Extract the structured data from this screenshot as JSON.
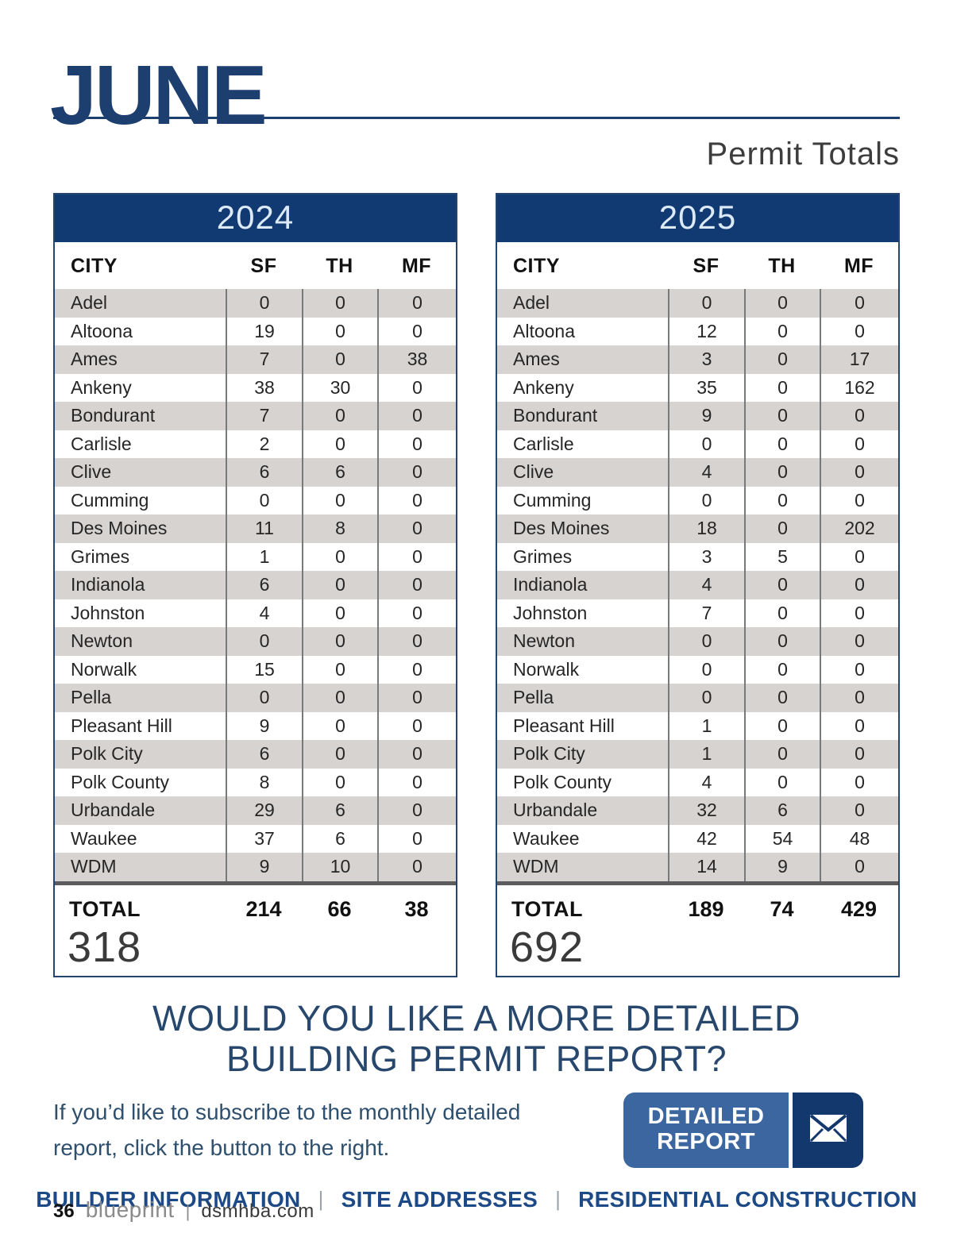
{
  "colors": {
    "navy": "#1d3f70",
    "banner": "#113a72",
    "stripe": "#d6d3d1",
    "heading": "#27476d",
    "btn-left": "#3c66a0",
    "btn-right": "#13386e",
    "links": "#1d4a86"
  },
  "header": {
    "month": "JUNE",
    "subtitle": "Permit Totals"
  },
  "tables": [
    {
      "year": "2024",
      "columns": [
        "CITY",
        "SF",
        "TH",
        "MF"
      ],
      "rows": [
        [
          "Adel",
          0,
          0,
          0
        ],
        [
          "Altoona",
          19,
          0,
          0
        ],
        [
          "Ames",
          7,
          0,
          38
        ],
        [
          "Ankeny",
          38,
          30,
          0
        ],
        [
          "Bondurant",
          7,
          0,
          0
        ],
        [
          "Carlisle",
          2,
          0,
          0
        ],
        [
          "Clive",
          6,
          6,
          0
        ],
        [
          "Cumming",
          0,
          0,
          0
        ],
        [
          "Des Moines",
          11,
          8,
          0
        ],
        [
          "Grimes",
          1,
          0,
          0
        ],
        [
          "Indianola",
          6,
          0,
          0
        ],
        [
          "Johnston",
          4,
          0,
          0
        ],
        [
          "Newton",
          0,
          0,
          0
        ],
        [
          "Norwalk",
          15,
          0,
          0
        ],
        [
          "Pella",
          0,
          0,
          0
        ],
        [
          "Pleasant Hill",
          9,
          0,
          0
        ],
        [
          "Polk City",
          6,
          0,
          0
        ],
        [
          "Polk County",
          8,
          0,
          0
        ],
        [
          "Urbandale",
          29,
          6,
          0
        ],
        [
          "Waukee",
          37,
          6,
          0
        ],
        [
          "WDM",
          9,
          10,
          0
        ]
      ],
      "total_label": "TOTAL",
      "totals": [
        214,
        66,
        38
      ],
      "grand_total": "318"
    },
    {
      "year": "2025",
      "columns": [
        "CITY",
        "SF",
        "TH",
        "MF"
      ],
      "rows": [
        [
          "Adel",
          0,
          0,
          0
        ],
        [
          "Altoona",
          12,
          0,
          0
        ],
        [
          "Ames",
          3,
          0,
          17
        ],
        [
          "Ankeny",
          35,
          0,
          162
        ],
        [
          "Bondurant",
          9,
          0,
          0
        ],
        [
          "Carlisle",
          0,
          0,
          0
        ],
        [
          "Clive",
          4,
          0,
          0
        ],
        [
          "Cumming",
          0,
          0,
          0
        ],
        [
          "Des Moines",
          18,
          0,
          202
        ],
        [
          "Grimes",
          3,
          5,
          0
        ],
        [
          "Indianola",
          4,
          0,
          0
        ],
        [
          "Johnston",
          7,
          0,
          0
        ],
        [
          "Newton",
          0,
          0,
          0
        ],
        [
          "Norwalk",
          0,
          0,
          0
        ],
        [
          "Pella",
          0,
          0,
          0
        ],
        [
          "Pleasant Hill",
          1,
          0,
          0
        ],
        [
          "Polk City",
          1,
          0,
          0
        ],
        [
          "Polk County",
          4,
          0,
          0
        ],
        [
          "Urbandale",
          32,
          6,
          0
        ],
        [
          "Waukee",
          42,
          54,
          48
        ],
        [
          "WDM",
          14,
          9,
          0
        ]
      ],
      "total_label": "TOTAL",
      "totals": [
        189,
        74,
        429
      ],
      "grand_total": "692"
    }
  ],
  "cta": {
    "heading_line1": "WOULD YOU LIKE A MORE DETAILED",
    "heading_line2": "BUILDING PERMIT REPORT?",
    "body_line1": "If you’d like to subscribe to the monthly detailed",
    "body_line2": "report, click the button to the right.",
    "button_line1": "DETAILED",
    "button_line2": "REPORT",
    "button_icon": "envelope-icon"
  },
  "footer_links": {
    "items": [
      "BUILDER INFORMATION",
      "SITE ADDRESSES",
      "RESIDENTIAL CONSTRUCTION"
    ],
    "separator": "|"
  },
  "page_footer": {
    "page_number": "36",
    "brand": "blueprint",
    "separator": "|",
    "site": "dsmhba.com"
  }
}
